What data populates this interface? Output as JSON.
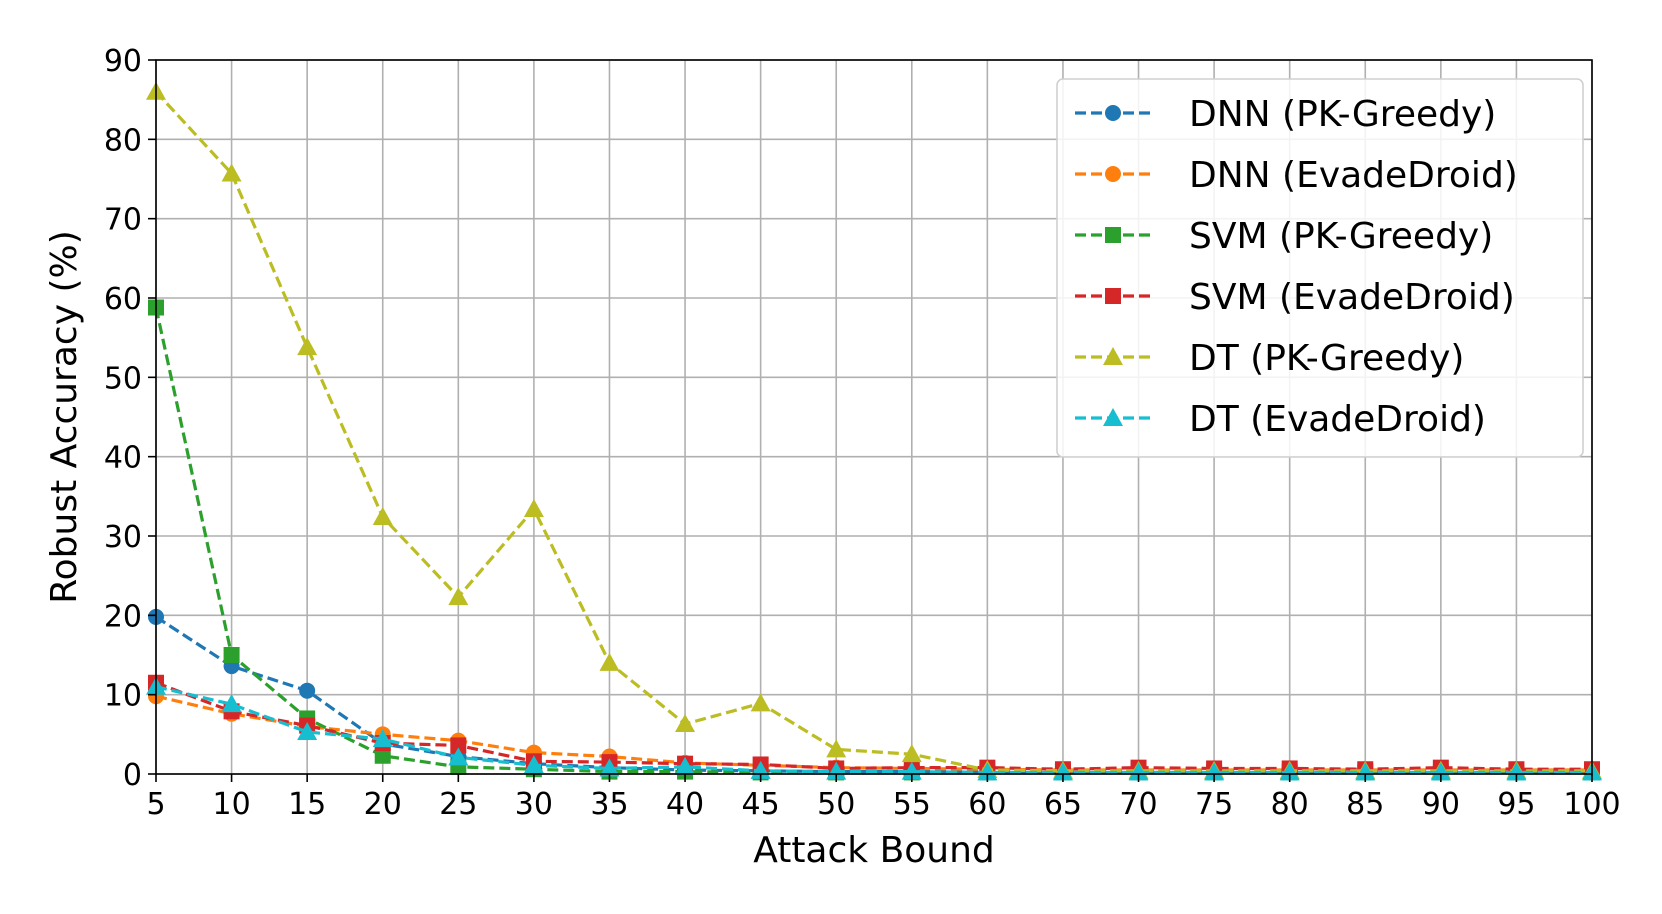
{
  "chart_data": {
    "type": "line",
    "title": "",
    "xlabel": "Attack Bound",
    "ylabel": "Robust Accuracy (%)",
    "xlim": [
      5,
      100
    ],
    "ylim": [
      0,
      90
    ],
    "x_ticks": [
      5,
      10,
      15,
      20,
      25,
      30,
      35,
      40,
      45,
      50,
      55,
      60,
      65,
      70,
      75,
      80,
      85,
      90,
      95,
      100
    ],
    "y_ticks": [
      0,
      10,
      20,
      30,
      40,
      50,
      60,
      70,
      80,
      90
    ],
    "grid": true,
    "legend_position": "top-right",
    "x": [
      5,
      10,
      15,
      20,
      25,
      30,
      35,
      40,
      45,
      50,
      55,
      60,
      65,
      70,
      75,
      80,
      85,
      90,
      95,
      100
    ],
    "series": [
      {
        "name": "DNN (PK-Greedy)",
        "color": "#1f77b4",
        "marker": "circle",
        "values": [
          19.8,
          13.6,
          10.5,
          3.8,
          2.2,
          1.3,
          0.8,
          0.5,
          0.4,
          0.3,
          0.3,
          0.3,
          0.3,
          0.3,
          0.3,
          0.3,
          0.3,
          0.3,
          0.3,
          0.3
        ]
      },
      {
        "name": "DNN (EvadeDroid)",
        "color": "#ff7f0e",
        "marker": "circle",
        "values": [
          9.8,
          7.6,
          6.0,
          5.0,
          4.2,
          2.7,
          2.2,
          1.4,
          1.1,
          0.8,
          0.7,
          0.6,
          0.5,
          0.5,
          0.5,
          0.5,
          0.5,
          0.5,
          0.5,
          0.5
        ]
      },
      {
        "name": "SVM (PK-Greedy)",
        "color": "#2ca02c",
        "marker": "square",
        "values": [
          58.8,
          15.0,
          7.0,
          2.3,
          0.9,
          0.6,
          0.3,
          0.3,
          0.2,
          0.2,
          0.2,
          0.2,
          0.2,
          0.2,
          0.2,
          0.2,
          0.2,
          0.2,
          0.2,
          0.2
        ]
      },
      {
        "name": "SVM (EvadeDroid)",
        "color": "#d62728",
        "marker": "square",
        "values": [
          11.5,
          7.9,
          6.1,
          3.9,
          3.6,
          1.6,
          1.5,
          1.3,
          1.2,
          0.7,
          0.8,
          0.8,
          0.6,
          0.8,
          0.7,
          0.7,
          0.6,
          0.8,
          0.6,
          0.6
        ]
      },
      {
        "name": "DT (PK-Greedy)",
        "color": "#bcbd22",
        "marker": "triangle",
        "values": [
          86.0,
          75.7,
          53.8,
          32.4,
          22.3,
          33.4,
          14.0,
          6.3,
          8.9,
          3.1,
          2.5,
          0.5,
          0.4,
          0.4,
          0.4,
          0.4,
          0.4,
          0.4,
          0.4,
          0.4
        ]
      },
      {
        "name": "DT (EvadeDroid)",
        "color": "#17becf",
        "marker": "triangle",
        "values": [
          11.0,
          8.8,
          5.3,
          4.4,
          2.1,
          1.1,
          0.7,
          0.9,
          0.4,
          0.3,
          0.3,
          0.2,
          0.2,
          0.2,
          0.2,
          0.2,
          0.2,
          0.2,
          0.2,
          0.2
        ]
      }
    ]
  }
}
